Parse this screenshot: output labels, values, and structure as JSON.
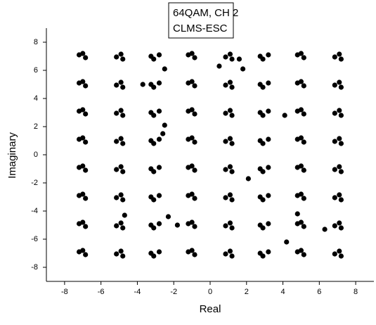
{
  "chart_data": {
    "type": "scatter",
    "title": "64QAM, CH 2",
    "subtitle": "CLMS-ESC",
    "x_label": "Real",
    "y_label": "Imaginary",
    "color": "#000000",
    "xlim": [
      -9,
      9
    ],
    "ylim": [
      -9,
      9
    ],
    "xticks": [
      -8,
      -6,
      -4,
      -2,
      0,
      2,
      4,
      6,
      8
    ],
    "yticks": [
      -8,
      -6,
      -4,
      -2,
      0,
      2,
      4,
      6,
      8
    ],
    "x": [
      -7.2,
      -6.85,
      -7,
      -4.9,
      -5.15,
      -4.8,
      -3.1,
      -2.8,
      -3.25,
      -1.2,
      -0.85,
      -1,
      1.1,
      0.85,
      1.2,
      2.9,
      3.2,
      2.75,
      4.8,
      5.15,
      5,
      7.1,
      6.85,
      7.2,
      -7.2,
      -6.85,
      -7,
      -4.9,
      -5.15,
      -4.8,
      -3.1,
      -2.8,
      -3.25,
      -1.2,
      -0.85,
      -1,
      1.1,
      0.85,
      1.2,
      2.9,
      3.2,
      2.75,
      4.8,
      5.15,
      5,
      7.1,
      6.85,
      7.2,
      -7.2,
      -6.85,
      -7,
      -4.9,
      -5.15,
      -4.8,
      -3.1,
      -2.8,
      -3.25,
      -1.2,
      -0.85,
      -1,
      1.1,
      0.85,
      1.2,
      2.9,
      3.2,
      2.75,
      4.8,
      5.15,
      5,
      7.1,
      6.85,
      7.2,
      -7.2,
      -6.85,
      -7,
      -4.9,
      -5.15,
      -4.8,
      -3.1,
      -2.8,
      -3.25,
      -1.2,
      -0.85,
      -1,
      1.1,
      0.85,
      1.2,
      2.9,
      3.2,
      2.75,
      4.8,
      5.15,
      5,
      7.1,
      6.85,
      7.2,
      -7.2,
      -6.85,
      -7,
      -4.9,
      -5.15,
      -4.8,
      -3.1,
      -2.8,
      -3.25,
      -1.2,
      -0.85,
      -1,
      1.1,
      0.85,
      1.2,
      2.9,
      3.2,
      2.75,
      4.8,
      5.15,
      5,
      7.1,
      6.85,
      7.2,
      -7.2,
      -6.85,
      -7,
      -4.9,
      -5.15,
      -4.8,
      -3.1,
      -2.8,
      -3.25,
      -1.2,
      -0.85,
      -1,
      1.1,
      0.85,
      1.2,
      2.9,
      3.2,
      2.75,
      4.8,
      5.15,
      5,
      7.1,
      6.85,
      7.2,
      -7.2,
      -6.85,
      -7,
      -4.9,
      -5.15,
      -4.8,
      -3.1,
      -2.8,
      -3.25,
      -1.2,
      -0.85,
      -1,
      1.1,
      0.85,
      1.2,
      2.9,
      3.2,
      2.75,
      4.8,
      5.15,
      5,
      7.1,
      6.85,
      7.2,
      -7.2,
      -6.85,
      -7,
      -4.9,
      -5.15,
      -4.8,
      -3.1,
      -2.8,
      -3.25,
      -1.2,
      -0.85,
      -1,
      1.1,
      0.85,
      1.2,
      2.9,
      3.2,
      2.75,
      4.8,
      5.15,
      5,
      7.1,
      6.85,
      7.2,
      -2.5,
      -3.7,
      1.8,
      0.5,
      1.6,
      -2.5,
      -2.6,
      4.1,
      2.1,
      -2.3,
      -1.8,
      -4.7,
      4.2,
      6.3,
      4.8
    ],
    "values": [
      7.1,
      6.9,
      7.2,
      7.15,
      6.95,
      6.8,
      6.8,
      7.1,
      7,
      7.1,
      6.9,
      7.2,
      7.15,
      6.95,
      6.8,
      6.8,
      7.1,
      7,
      7.1,
      6.9,
      7.2,
      7.15,
      6.95,
      6.8,
      5.1,
      4.9,
      5.2,
      5.15,
      4.95,
      4.8,
      4.8,
      5.1,
      5,
      5.1,
      4.9,
      5.2,
      5.15,
      4.95,
      4.8,
      4.8,
      5.1,
      5,
      5.1,
      4.9,
      5.2,
      5.15,
      4.95,
      4.8,
      3.1,
      2.9,
      3.2,
      3.15,
      2.95,
      2.8,
      2.8,
      3.1,
      3,
      3.1,
      2.9,
      3.2,
      3.15,
      2.95,
      2.8,
      2.8,
      3.1,
      3,
      3.1,
      2.9,
      3.2,
      3.15,
      2.95,
      2.8,
      1.1,
      0.9,
      1.2,
      1.15,
      0.95,
      0.8,
      0.8,
      1.1,
      1,
      1.1,
      0.9,
      1.2,
      1.15,
      0.95,
      0.8,
      0.8,
      1.1,
      1,
      1.1,
      0.9,
      1.2,
      1.15,
      0.95,
      0.8,
      -0.9,
      -1.1,
      -0.8,
      -0.85,
      -1.05,
      -1.2,
      -1.2,
      -0.9,
      -1,
      -0.9,
      -1.1,
      -0.8,
      -0.85,
      -1.05,
      -1.2,
      -1.2,
      -0.9,
      -1,
      -0.9,
      -1.1,
      -0.8,
      -0.85,
      -1.05,
      -1.2,
      -2.9,
      -3.1,
      -2.8,
      -2.85,
      -3.05,
      -3.2,
      -3.2,
      -2.9,
      -3,
      -2.9,
      -3.1,
      -2.8,
      -2.85,
      -3.05,
      -3.2,
      -3.2,
      -2.9,
      -3,
      -2.9,
      -3.1,
      -2.8,
      -2.85,
      -3.05,
      -3.2,
      -4.9,
      -5.1,
      -4.8,
      -4.85,
      -5.05,
      -5.2,
      -5.2,
      -4.9,
      -5,
      -4.9,
      -5.1,
      -4.8,
      -4.85,
      -5.05,
      -5.2,
      -5.2,
      -4.9,
      -5,
      -4.9,
      -5.1,
      -4.8,
      -4.85,
      -5.05,
      -5.2,
      -6.9,
      -7.1,
      -6.8,
      -6.85,
      -7.05,
      -7.2,
      -7.2,
      -6.9,
      -7,
      -6.9,
      -7.1,
      -6.8,
      -6.85,
      -7.05,
      -7.2,
      -7.2,
      -6.9,
      -7,
      -6.9,
      -7.1,
      -6.8,
      -6.85,
      -7.05,
      -7.2,
      6.1,
      5,
      6.1,
      6.3,
      6.8,
      2.1,
      1.5,
      2.8,
      -1.7,
      -4.4,
      -5,
      -4.3,
      -6.2,
      -5.3,
      -4.2
    ]
  }
}
